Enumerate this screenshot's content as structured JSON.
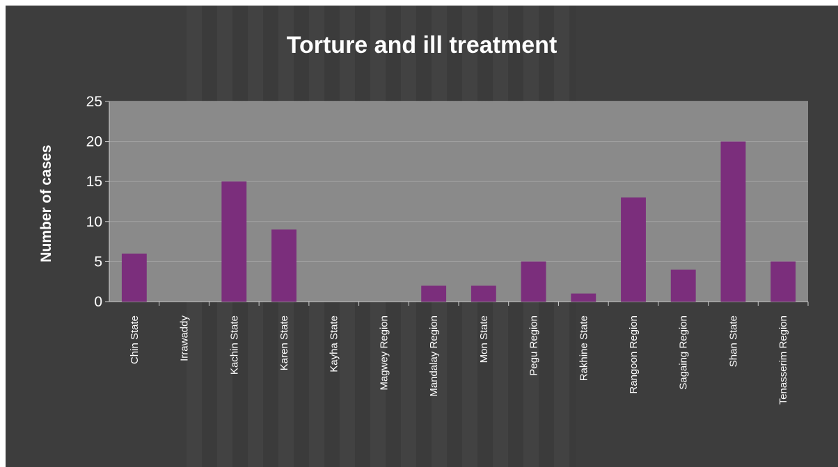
{
  "chart_data": {
    "type": "bar",
    "title": "Torture and ill treatment",
    "ylabel": "Number of cases",
    "xlabel": "",
    "categories": [
      "Chin State",
      "Irrawaddy",
      "Kachin State",
      "Karen State",
      "Kayha State",
      "Magwey Region",
      "Mandalay Region",
      "Mon State",
      "Pegu Region",
      "Rakhine State",
      "Rangoon Region",
      "Sagaing Region",
      "Shan State",
      "Tenasserim Region"
    ],
    "values": [
      6,
      0,
      15,
      9,
      0,
      0,
      2,
      2,
      5,
      1,
      13,
      4,
      20,
      5
    ],
    "ylim": [
      0,
      25
    ],
    "yticks": [
      0,
      5,
      10,
      15,
      20,
      25
    ],
    "grid": true,
    "legend": "none",
    "colors": {
      "bar": "#7b2e7c",
      "plot_background": "#8a8a8a",
      "chart_background": "#3d3d3d",
      "gridline": "#a2a2a2",
      "text": "#ffffff"
    }
  }
}
